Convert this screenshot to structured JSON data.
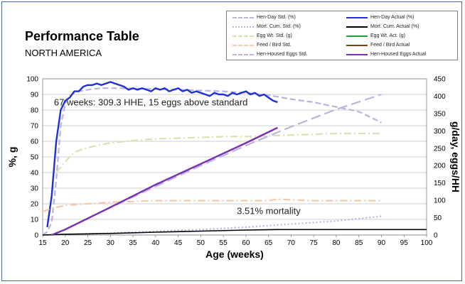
{
  "chart_data": {
    "type": "line",
    "title": "Performance Table",
    "subtitle": "NORTH AMERICA",
    "xlabel": "Age (weeks)",
    "ylabel": "%, g",
    "y2label": "g/day, eggs/HH",
    "xlim": [
      15,
      100
    ],
    "ylim": [
      0,
      100
    ],
    "y2lim": [
      0,
      450
    ],
    "x_ticks": [
      "15",
      "20",
      "25",
      "30",
      "35",
      "40",
      "45",
      "50",
      "55",
      "60",
      "65",
      "70",
      "75",
      "80",
      "85",
      "90",
      "95",
      "100"
    ],
    "y_ticks": [
      "0",
      "10",
      "20",
      "30",
      "40",
      "50",
      "60",
      "70",
      "80",
      "90",
      "100"
    ],
    "y2_ticks": [
      "0",
      "50",
      "100",
      "150",
      "200",
      "250",
      "300",
      "350",
      "400",
      "450"
    ],
    "grid": "horizontal",
    "legend_position": "top-right",
    "annotations": [
      {
        "text": "67 weeks: 309.3 HHE, 15 eggs above standard",
        "x": 17.5,
        "y": 83
      },
      {
        "text": "3.51% mortality",
        "x": 58,
        "y": 13.5
      }
    ],
    "series": [
      {
        "name": "Hen-Day Std. (%)",
        "axis": "left",
        "color": "#b9b4e0",
        "dash": "8,4",
        "x": [
          15,
          16,
          17,
          18,
          19,
          20,
          21,
          22,
          23,
          24,
          25,
          26,
          28,
          30,
          32,
          35,
          40,
          45,
          50,
          55,
          60,
          65,
          70,
          75,
          80,
          85,
          90
        ],
        "y": [
          0,
          2,
          8,
          35,
          70,
          84,
          89,
          91,
          92,
          92.5,
          93,
          93.5,
          94,
          94,
          94,
          93.8,
          93.5,
          93,
          92.5,
          92,
          91,
          89.5,
          87,
          85,
          82,
          79,
          72
        ]
      },
      {
        "name": "Hen-Day Actual (%)",
        "axis": "left",
        "color": "#1f2fd8",
        "dash": "",
        "x": [
          16,
          17,
          18,
          19,
          20,
          21,
          22,
          23,
          24,
          25,
          26,
          27,
          28,
          29,
          30,
          31,
          32,
          33,
          34,
          35,
          36,
          37,
          38,
          39,
          40,
          41,
          42,
          43,
          44,
          45,
          46,
          47,
          48,
          49,
          50,
          51,
          52,
          53,
          54,
          55,
          56,
          57,
          58,
          59,
          60,
          61,
          62,
          63,
          64,
          65,
          66,
          67
        ],
        "y": [
          5,
          25,
          60,
          80,
          86,
          88,
          92,
          92,
          95,
          96,
          96,
          97,
          96,
          97,
          98,
          97,
          96,
          95,
          93,
          94,
          93,
          94,
          93,
          92,
          94,
          93,
          94,
          92,
          93,
          94,
          92,
          93,
          91,
          92,
          91,
          90,
          89,
          91,
          90,
          90,
          89,
          91,
          90,
          91,
          92,
          90,
          91,
          89,
          90,
          88,
          86,
          85
        ]
      },
      {
        "name": "Mort. Cum. Std. (%)",
        "axis": "left",
        "color": "#b9b4e0",
        "dash": "2,3",
        "x": [
          15,
          20,
          30,
          40,
          50,
          60,
          70,
          80,
          90
        ],
        "y": [
          0,
          0.3,
          1.2,
          2.4,
          3.5,
          5,
          7,
          9,
          12
        ]
      },
      {
        "name": "Mort. Cum. Actual (%)",
        "axis": "left",
        "color": "#000000",
        "dash": "",
        "x": [
          15,
          20,
          30,
          40,
          50,
          60,
          67,
          75,
          80,
          90,
          100
        ],
        "y": [
          0,
          0.5,
          1,
          1.8,
          2.5,
          3.2,
          3.5,
          3.5,
          3.5,
          3.5,
          3.5
        ]
      },
      {
        "name": "Egg Wt. Std. (g)",
        "axis": "left",
        "color": "#d9e3b2",
        "dash": "10,4,2,4",
        "x": [
          18,
          20,
          22,
          25,
          30,
          35,
          40,
          45,
          50,
          55,
          60,
          65,
          70,
          75,
          80,
          85,
          90
        ],
        "y": [
          40,
          47,
          53,
          56,
          59,
          60.5,
          61.5,
          62,
          62.5,
          63,
          63,
          63.5,
          64,
          64.5,
          65,
          65,
          65
        ]
      },
      {
        "name": "Egg Wt. Act. (g)",
        "axis": "left",
        "color": "#1f9e3a",
        "dash": "",
        "x": [],
        "y": []
      },
      {
        "name": "Feed / Bird Std.",
        "axis": "left",
        "color": "#f7c9a8",
        "dash": "10,4,2,4",
        "x": [
          15,
          17,
          20,
          25,
          30,
          35,
          40,
          45,
          50,
          55,
          60,
          65,
          67,
          70,
          75,
          80,
          85,
          90
        ],
        "y": [
          15,
          17,
          19,
          20,
          21,
          21.5,
          22,
          22,
          22,
          22,
          22,
          22,
          23,
          22.5,
          22,
          22,
          22,
          22
        ]
      },
      {
        "name": "Feed / Bird Actual",
        "axis": "left",
        "color": "#8b3a1a",
        "dash": "",
        "x": [],
        "y": []
      },
      {
        "name": "Hen-Housed Eggs Std.",
        "axis": "right",
        "color": "#b9b4e0",
        "dash": "14,6",
        "x": [
          17,
          20,
          30,
          40,
          50,
          60,
          70,
          80,
          90
        ],
        "y": [
          0,
          17,
          79,
          140,
          200,
          258,
          312,
          362,
          405
        ]
      },
      {
        "name": "Hen-Housed Eggs Actual",
        "axis": "right",
        "color": "#7a2fb0",
        "dash": "",
        "x": [
          17,
          20,
          30,
          40,
          50,
          60,
          67
        ],
        "y": [
          0,
          16,
          80,
          145,
          205,
          265,
          309.3
        ]
      }
    ]
  }
}
